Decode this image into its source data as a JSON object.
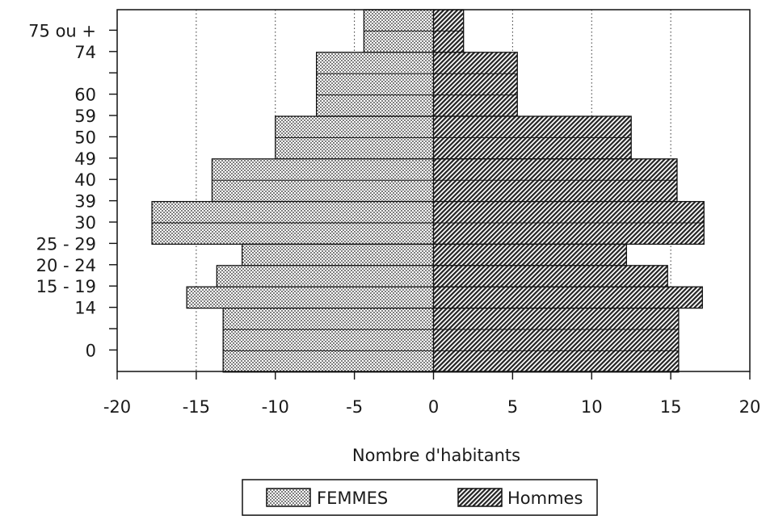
{
  "chart_data": {
    "type": "bar",
    "orientation": "horizontal",
    "title": "",
    "xlabel": "Nombre d'habitants",
    "ylabel": "",
    "xlim": [
      -20,
      20
    ],
    "x_ticks": [
      -20,
      -15,
      -10,
      -5,
      0,
      5,
      10,
      15,
      20
    ],
    "x_tick_labels": [
      "-20",
      "-15",
      "-10",
      "-5",
      "0",
      "5",
      "10",
      "15",
      "20"
    ],
    "y_tick_labels": [
      "75 ou +",
      "74",
      "60",
      "59",
      "50",
      "49",
      "40",
      "39",
      "30",
      "25 - 29",
      "20 - 24",
      "15 - 19",
      "14",
      "0"
    ],
    "grid": "vertical dotted",
    "legend_position": "bottom-center",
    "series": [
      {
        "name": "FEMMES",
        "groups": [
          "75 ou +",
          "60-74",
          "50-59",
          "40-49",
          "30-39",
          "25 - 29",
          "20 - 24",
          "15 - 19",
          "0-14"
        ],
        "values": [
          -4.4,
          -7.4,
          -10,
          -14,
          -17.8,
          -12.1,
          -13.7,
          -15.6,
          -13.3
        ]
      },
      {
        "name": "Hommes",
        "groups": [
          "75 ou +",
          "60-74",
          "50-59",
          "40-49",
          "30-39",
          "25 - 29",
          "20 - 24",
          "15 - 19",
          "0-14"
        ],
        "values": [
          1.9,
          5.3,
          12.5,
          15.4,
          17.1,
          12.2,
          14.8,
          17.0,
          15.5
        ]
      }
    ]
  }
}
